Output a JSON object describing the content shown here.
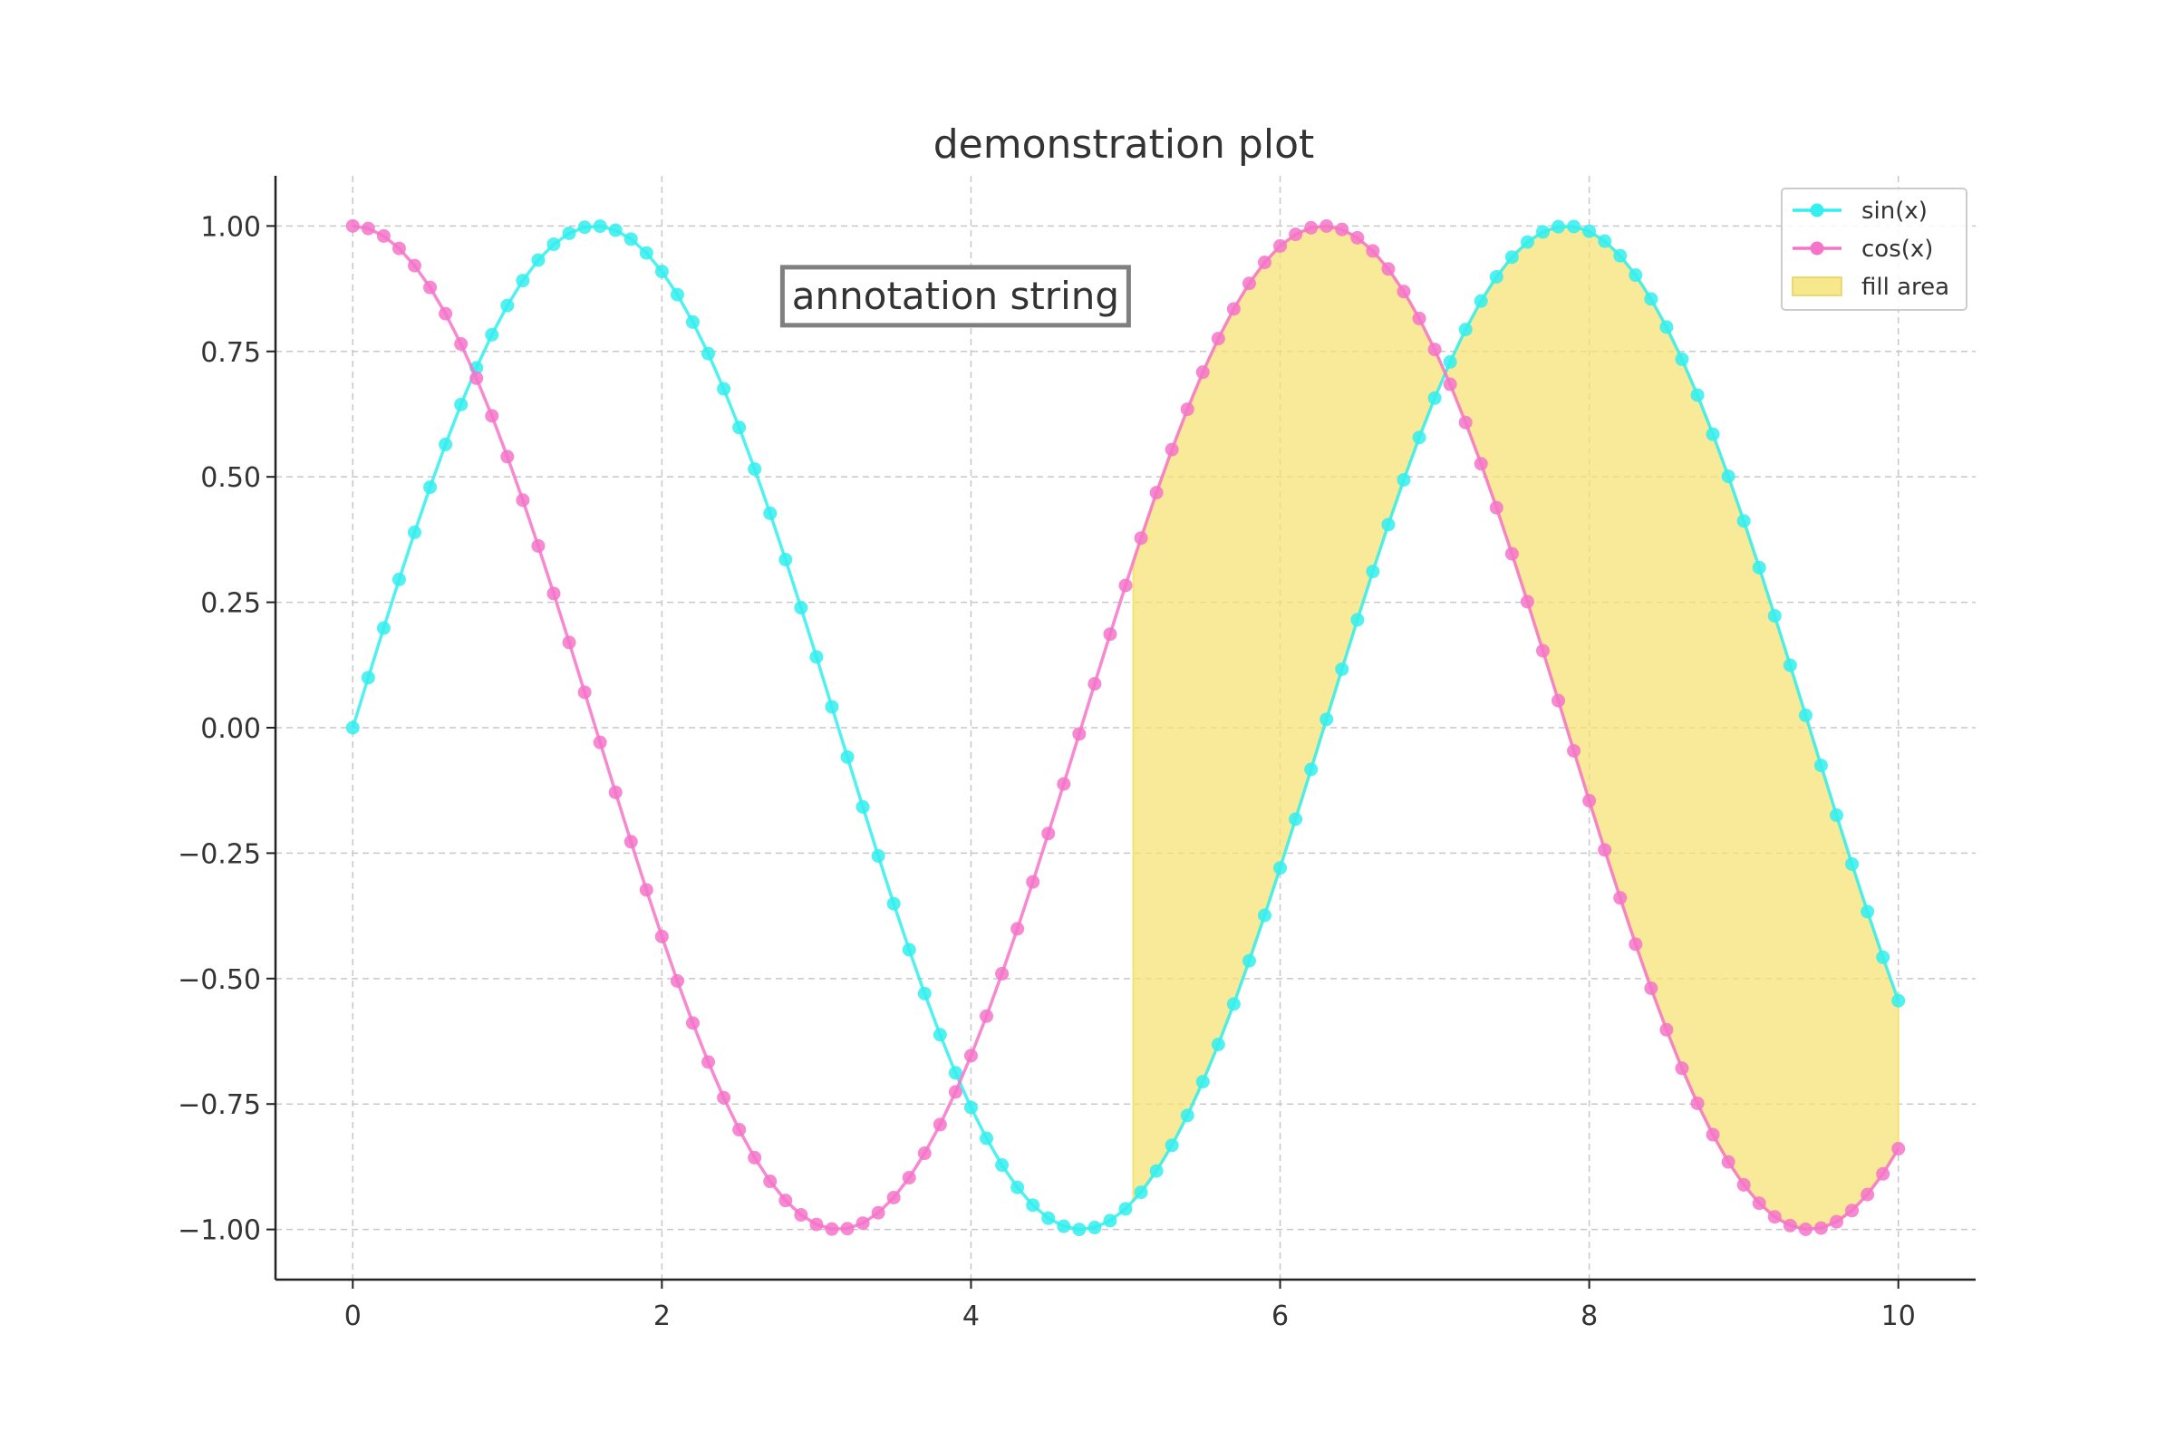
{
  "chart_data": {
    "type": "line",
    "title": "demonstration plot",
    "xlabel": "",
    "ylabel": "",
    "xlim": [
      -0.5,
      10.5
    ],
    "ylim": [
      -1.1,
      1.1
    ],
    "xticks": [
      0,
      2,
      4,
      6,
      8,
      10
    ],
    "xtick_labels": [
      "0",
      "2",
      "4",
      "6",
      "8",
      "10"
    ],
    "yticks": [
      -1.0,
      -0.75,
      -0.5,
      -0.25,
      0.0,
      0.25,
      0.5,
      0.75,
      1.0
    ],
    "ytick_labels": [
      "−1.00",
      "−0.75",
      "−0.50",
      "−0.25",
      "0.00",
      "0.25",
      "0.50",
      "0.75",
      "1.00"
    ],
    "grid": true,
    "legend_position": "top-right",
    "x_range": [
      0,
      10
    ],
    "num_points": 101,
    "series": [
      {
        "name": "sin(x)",
        "function": "sin(x)",
        "color": "#33EFEF",
        "marker": "circle"
      },
      {
        "name": "cos(x)",
        "function": "cos(x)",
        "color": "#F574C9",
        "marker": "circle"
      }
    ],
    "fill": {
      "name": "fill area",
      "between": [
        "sin(x)",
        "cos(x)"
      ],
      "x_range": [
        5.05,
        10
      ],
      "color": "#F6E271"
    },
    "annotation": {
      "text": "annotation string",
      "x": 3.9,
      "y": 0.86
    }
  }
}
